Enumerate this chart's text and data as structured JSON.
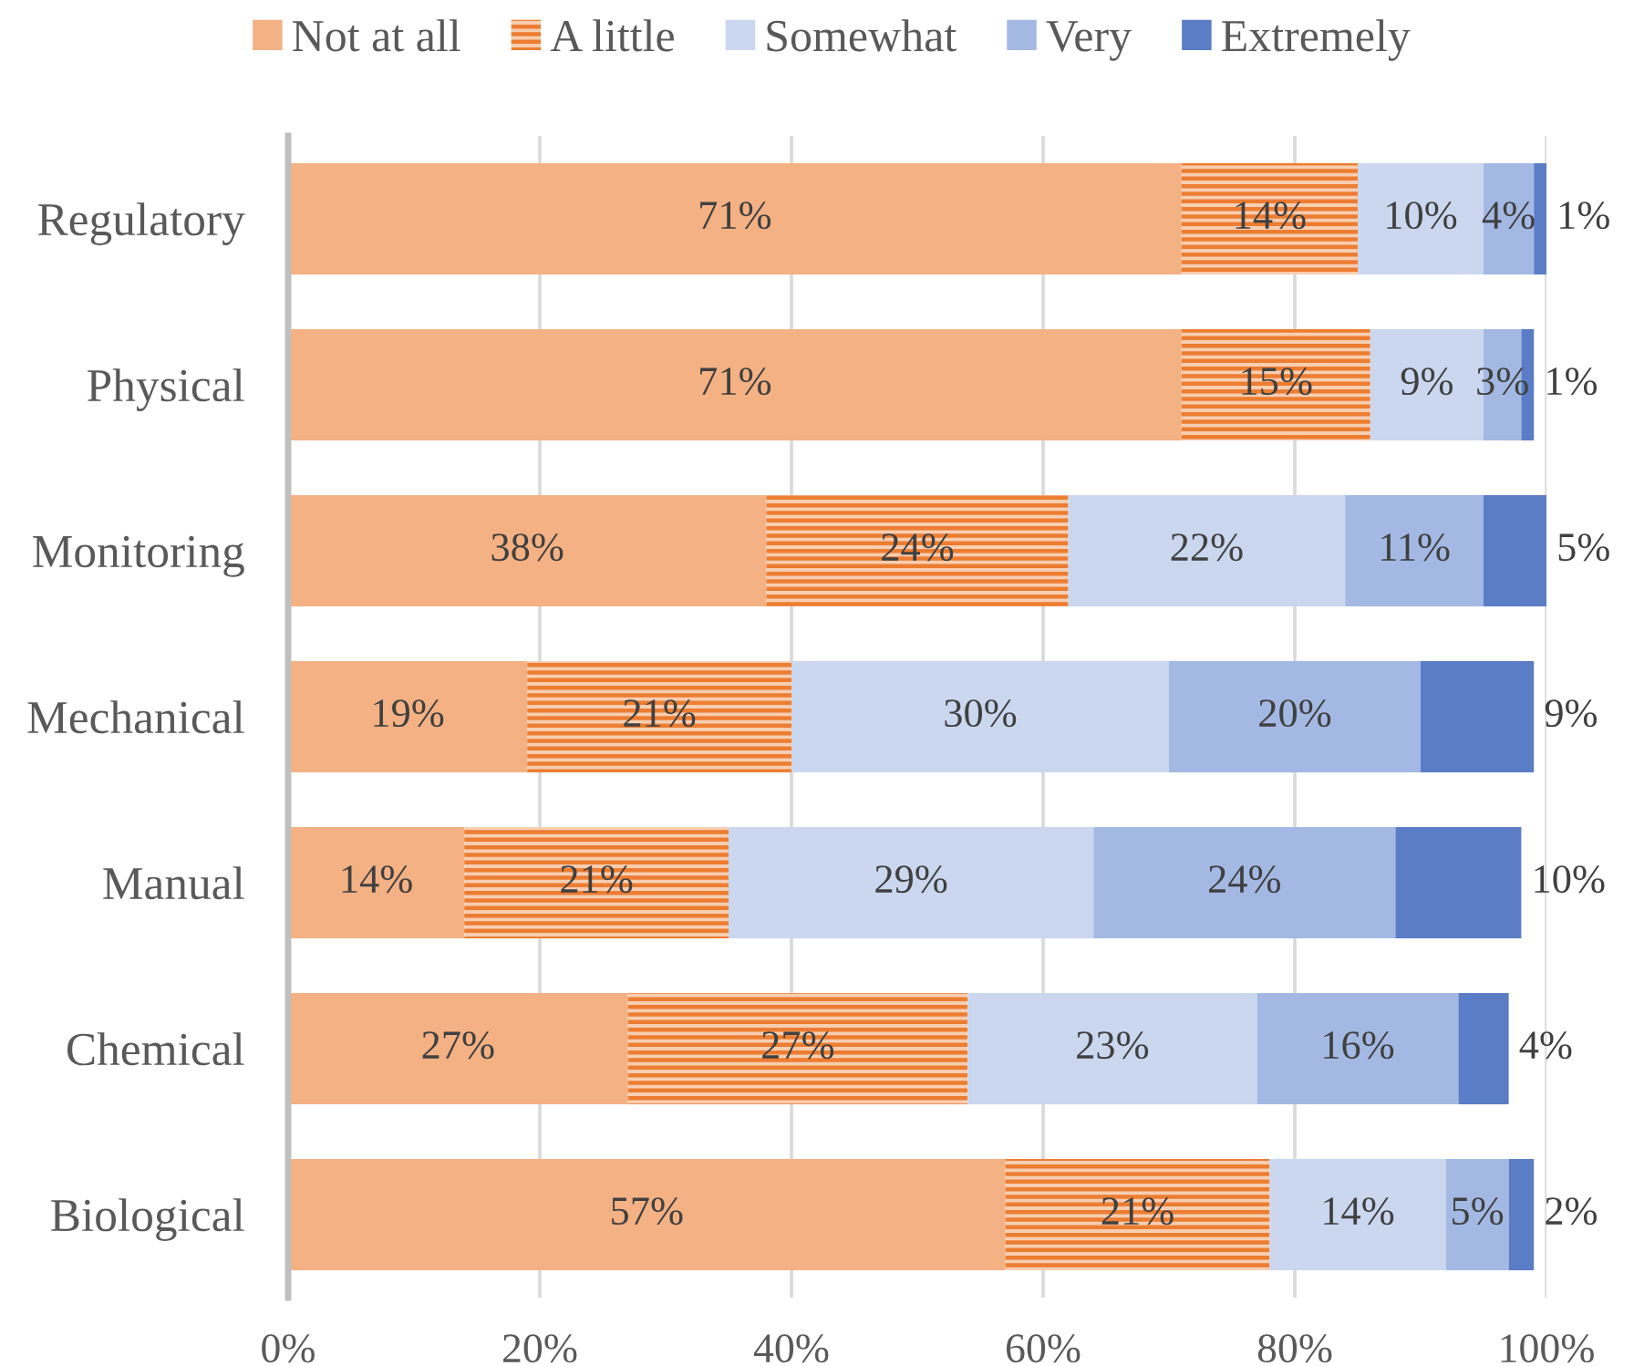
{
  "chart_data": {
    "type": "bar",
    "orientation": "horizontal",
    "stacked": true,
    "categories": [
      "Regulatory",
      "Physical",
      "Monitoring",
      "Mechanical",
      "Manual",
      "Chemical",
      "Biological"
    ],
    "series": [
      {
        "name": "Not at all",
        "color": "#f4b183",
        "values": [
          71,
          71,
          38,
          19,
          14,
          27,
          57
        ],
        "value_labels": [
          "71%",
          "71%",
          "38%",
          "19%",
          "14%",
          "27%",
          "57%"
        ]
      },
      {
        "name": "A little",
        "color": "#ed7d31",
        "values": [
          14,
          15,
          24,
          21,
          21,
          27,
          21
        ],
        "value_labels": [
          "14%",
          "15%",
          "24%",
          "21%",
          "21%",
          "27%",
          "21%"
        ]
      },
      {
        "name": "Somewhat",
        "color": "#cad7ef",
        "values": [
          10,
          9,
          22,
          30,
          29,
          23,
          14
        ],
        "value_labels": [
          "10%",
          "9%",
          "22%",
          "30%",
          "29%",
          "23%",
          "14%"
        ]
      },
      {
        "name": "Very",
        "color": "#a3b9e3",
        "values": [
          4,
          3,
          11,
          20,
          24,
          16,
          5
        ],
        "value_labels": [
          "4%",
          "3%",
          "11%",
          "20%",
          "24%",
          "16%",
          "5%"
        ]
      },
      {
        "name": "Extremely",
        "color": "#5a7dc5",
        "values": [
          1,
          1,
          5,
          9,
          10,
          4,
          2
        ],
        "value_labels": [
          "1%",
          "1%",
          "5%",
          "9%",
          "10%",
          "4%",
          "2%"
        ]
      }
    ],
    "xlim": [
      0,
      100
    ],
    "xticks": [
      {
        "value": 0,
        "label": "0%"
      },
      {
        "value": 20,
        "label": "20%"
      },
      {
        "value": 40,
        "label": "40%"
      },
      {
        "value": 60,
        "label": "60%"
      },
      {
        "value": 80,
        "label": "80%"
      },
      {
        "value": 100,
        "label": "100%"
      }
    ],
    "grid": "x",
    "legend": "top"
  }
}
